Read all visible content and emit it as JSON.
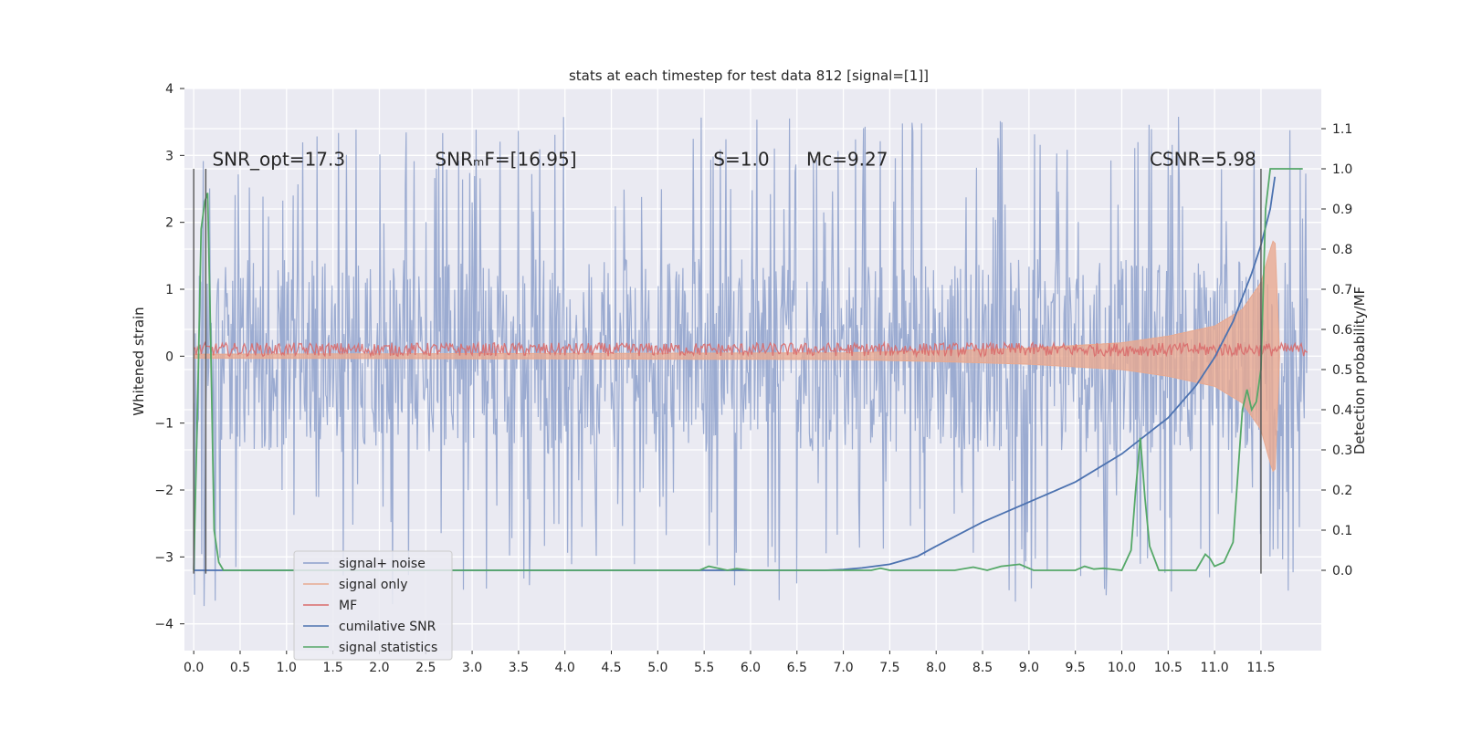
{
  "chart_data": {
    "type": "line",
    "title": "stats at each timestep for test data 812 [signal=[1]]",
    "ylabel_left": "Whitened strain",
    "ylabel_right": "Detection probability/MF",
    "xlim": [
      -0.1,
      12.15
    ],
    "ylim_left": [
      -4.4,
      4
    ],
    "ylim_right": [
      -0.2,
      1.2
    ],
    "x_ticks": [
      0.0,
      0.5,
      1.0,
      1.5,
      2.0,
      2.5,
      3.0,
      3.5,
      4.0,
      4.5,
      5.0,
      5.5,
      6.0,
      6.5,
      7.0,
      7.5,
      8.0,
      8.5,
      9.0,
      9.5,
      10.0,
      10.5,
      11.0,
      11.5
    ],
    "x_tick_labels": [
      "0.0",
      "0.5",
      "1.0",
      "1.5",
      "2.0",
      "2.5",
      "3.0",
      "3.5",
      "4.0",
      "4.5",
      "5.0",
      "5.5",
      "6.0",
      "6.5",
      "7.0",
      "7.5",
      "8.0",
      "8.5",
      "9.0",
      "9.5",
      "10.0",
      "10.5",
      "11.0",
      "11.5"
    ],
    "y_left_ticks": [
      -4,
      -3,
      -2,
      -1,
      0,
      1,
      2,
      3,
      4
    ],
    "y_left_tick_labels": [
      "−4",
      "−3",
      "−2",
      "−1",
      "0",
      "1",
      "2",
      "3",
      "4"
    ],
    "y_right_ticks": [
      0.0,
      0.1,
      0.2,
      0.3,
      0.4,
      0.5,
      0.6,
      0.7,
      0.8,
      0.9,
      1.0,
      1.1
    ],
    "y_right_tick_labels": [
      "0.0",
      "0.1",
      "0.2",
      "0.3",
      "0.4",
      "0.5",
      "0.6",
      "0.7",
      "0.8",
      "0.9",
      "1.0",
      "1.1"
    ],
    "grid": true,
    "legend_position": "lower-left",
    "annotations": [
      {
        "id": "snr-opt",
        "text": "SNR_opt=17.3",
        "x": 0.2,
        "y": 2.85
      },
      {
        "id": "snr-mf",
        "text": "SNRₘF=[16.95]",
        "x": 2.6,
        "y": 2.85
      },
      {
        "id": "s",
        "text": "S=1.0",
        "x": 5.6,
        "y": 2.85
      },
      {
        "id": "mc",
        "text": "Mᴄ=9.27",
        "x": 6.6,
        "y": 2.85
      },
      {
        "id": "csnr",
        "text": "CSNR=5.98",
        "x": 10.3,
        "y": 2.85
      }
    ],
    "vertical_lines": [
      {
        "x": 0.0,
        "y_range": [
          -3.25,
          2.8
        ],
        "color": "#555555"
      },
      {
        "x": 0.13,
        "y_range": [
          -3.25,
          2.8
        ],
        "color": "#555555"
      },
      {
        "x": 11.5,
        "y_range": [
          -3.25,
          2.8
        ],
        "color": "#555555"
      }
    ],
    "series": [
      {
        "name": "signal+ noise",
        "axis": "left",
        "color": "#8da0cb",
        "description_type": "dense noise",
        "x_range": [
          0.0,
          12.0
        ],
        "envelope_core": [
          -1.5,
          1.6
        ],
        "spike_extremes": [
          -4.0,
          3.6
        ]
      },
      {
        "name": "signal only",
        "axis": "left",
        "color": "#e8a990",
        "description_type": "chirp",
        "x": [
          0.0,
          7.0,
          8.0,
          9.0,
          10.0,
          10.5,
          11.0,
          11.3,
          11.5,
          11.6,
          11.65,
          11.7
        ],
        "amplitude": [
          0.03,
          0.05,
          0.08,
          0.12,
          0.2,
          0.3,
          0.45,
          0.7,
          1.1,
          1.6,
          1.8,
          0.0
        ]
      },
      {
        "name": "MF",
        "axis": "left",
        "color": "#d96b6b",
        "description_type": "band",
        "x_range": [
          0.0,
          12.0
        ],
        "band": [
          0.0,
          0.2
        ]
      },
      {
        "name": "cumilative SNR",
        "axis": "right",
        "color": "#4c72b0",
        "x": [
          0.0,
          6.8,
          7.0,
          7.2,
          7.5,
          7.8,
          8.0,
          8.5,
          9.0,
          9.5,
          10.0,
          10.5,
          10.8,
          11.0,
          11.2,
          11.4,
          11.5,
          11.6,
          11.65
        ],
        "y": [
          0.0,
          0.0,
          0.002,
          0.006,
          0.015,
          0.035,
          0.06,
          0.12,
          0.17,
          0.22,
          0.29,
          0.38,
          0.46,
          0.53,
          0.62,
          0.74,
          0.81,
          0.9,
          0.98
        ]
      },
      {
        "name": "signal statistics",
        "axis": "right",
        "color": "#55a868",
        "x": [
          0.0,
          0.05,
          0.08,
          0.12,
          0.15,
          0.18,
          0.22,
          0.27,
          0.32,
          5.45,
          5.55,
          5.65,
          5.75,
          5.85,
          6.0,
          7.0,
          7.3,
          7.4,
          7.5,
          8.2,
          8.4,
          8.55,
          8.7,
          8.9,
          9.05,
          9.5,
          9.6,
          9.7,
          9.8,
          10.0,
          10.1,
          10.15,
          10.2,
          10.25,
          10.3,
          10.4,
          10.5,
          10.8,
          10.9,
          10.95,
          11.0,
          11.1,
          11.2,
          11.3,
          11.35,
          11.4,
          11.45,
          11.5,
          11.55,
          11.6,
          11.65,
          11.7,
          11.95
        ],
        "y": [
          0.0,
          0.5,
          0.85,
          0.92,
          0.94,
          0.6,
          0.1,
          0.02,
          0.0,
          0.0,
          0.01,
          0.005,
          0.0,
          0.004,
          0.0,
          0.0,
          0.0,
          0.005,
          0.0,
          0.0,
          0.008,
          0.0,
          0.01,
          0.015,
          0.0,
          0.0,
          0.01,
          0.003,
          0.005,
          0.0,
          0.05,
          0.2,
          0.33,
          0.18,
          0.06,
          0.0,
          0.0,
          0.0,
          0.04,
          0.03,
          0.01,
          0.02,
          0.07,
          0.4,
          0.45,
          0.4,
          0.42,
          0.5,
          0.9,
          1.0,
          1.0,
          1.0,
          1.0
        ]
      }
    ]
  },
  "legend": {
    "items": [
      {
        "label": "signal+ noise",
        "color": "#8da0cb"
      },
      {
        "label": "signal only",
        "color": "#e8a990"
      },
      {
        "label": "MF",
        "color": "#d96b6b"
      },
      {
        "label": "cumilative SNR",
        "color": "#4c72b0"
      },
      {
        "label": "signal statistics",
        "color": "#55a868"
      }
    ]
  },
  "colors": {
    "plot_background": "#eaeaf2",
    "grid": "#ffffff",
    "text": "#262626"
  }
}
